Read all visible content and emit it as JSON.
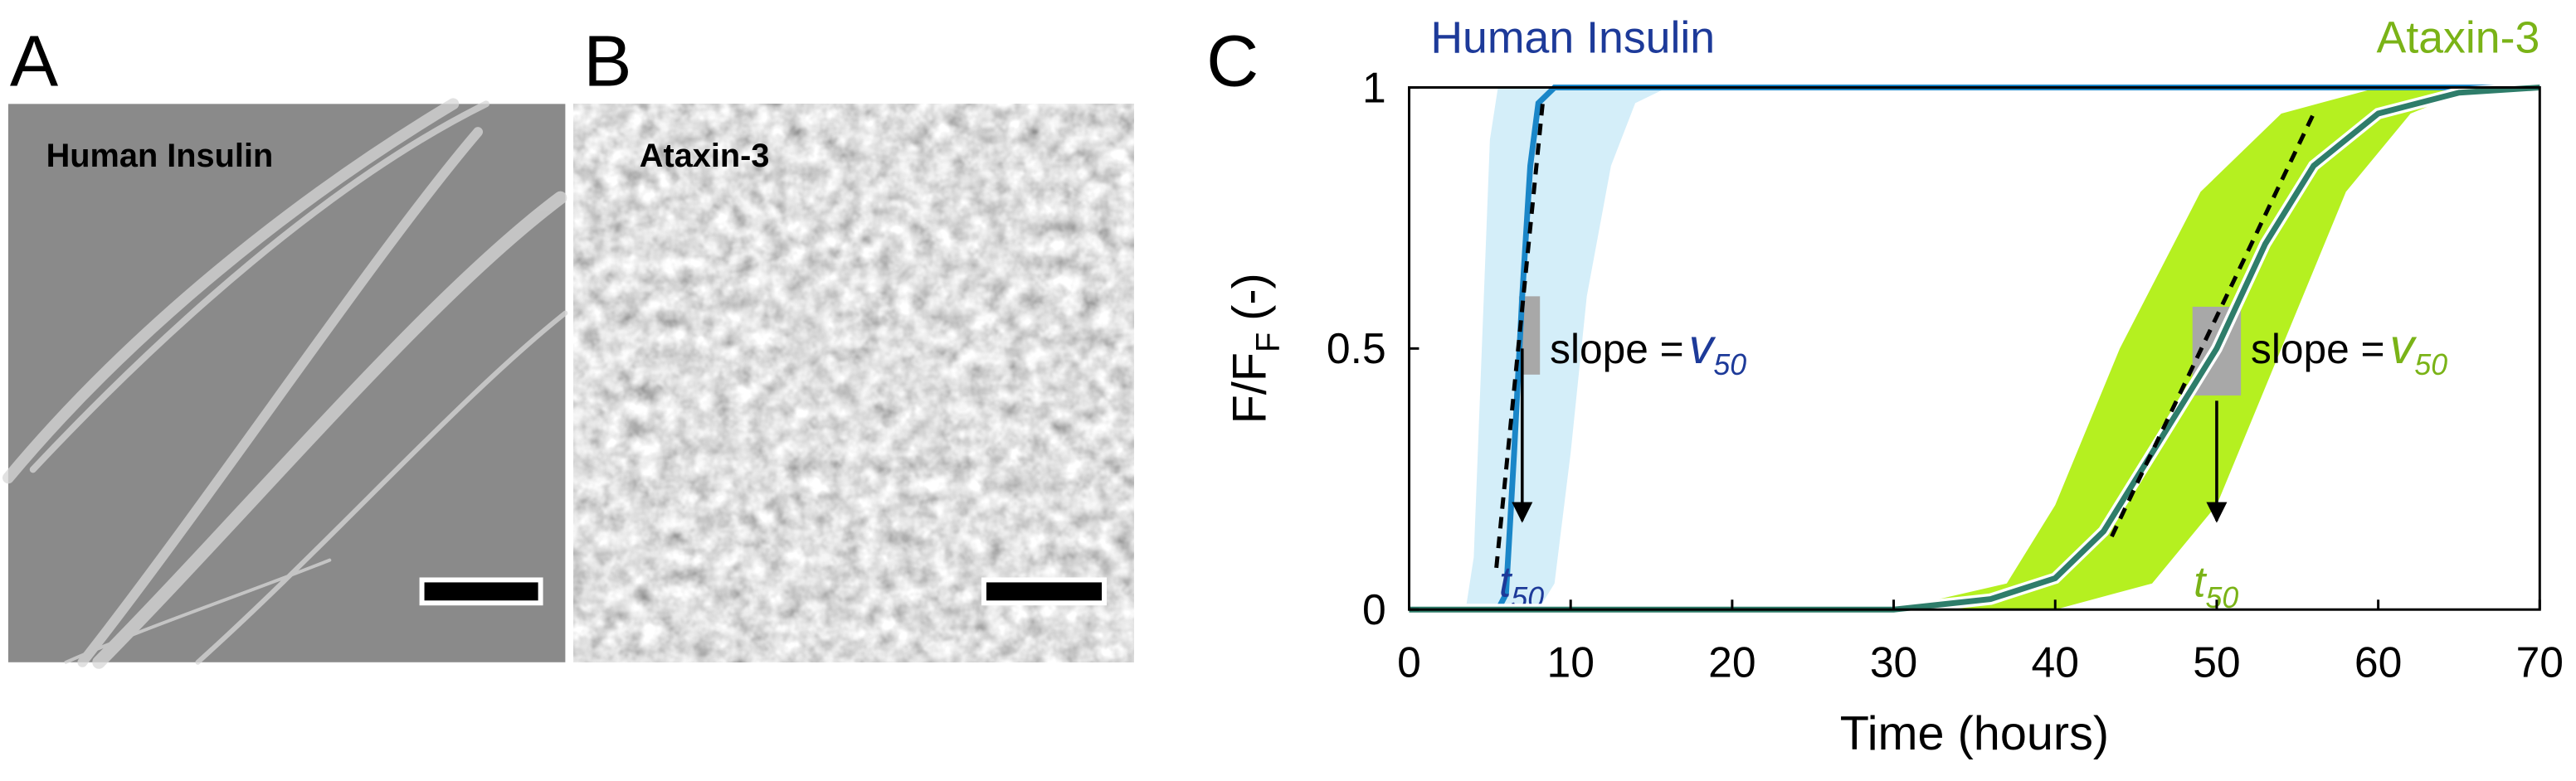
{
  "panels": {
    "a": {
      "letter": "A",
      "label": "Human Insulin"
    },
    "b": {
      "letter": "B",
      "label": "Ataxin-3"
    }
  },
  "chart_data": {
    "type": "line",
    "letter": "C",
    "xlabel": "Time (hours)",
    "ylabel": {
      "main": "F/F",
      "sub": "F",
      "tail": "(-)"
    },
    "xlim": [
      0,
      70
    ],
    "ylim": [
      0,
      1
    ],
    "xticks": [
      0,
      10,
      20,
      30,
      40,
      50,
      60,
      70
    ],
    "yticks": [
      0,
      0.5,
      1
    ],
    "slope_label": "slope =",
    "rate_symbol": "v",
    "time_symbol": "t",
    "subscript": "50",
    "series": [
      {
        "name": "Human Insulin",
        "color": "#1a86c8",
        "label_color": "#1d3a99",
        "band_color": "#d4eef9",
        "x": [
          0,
          5.5,
          6,
          6.5,
          7,
          7.5,
          8,
          9,
          70
        ],
        "values": [
          0,
          0,
          0.03,
          0.3,
          0.6,
          0.85,
          0.97,
          1,
          1
        ],
        "band_left": {
          "x": [
            3.5,
            4,
            4.5,
            5,
            5.5,
            70
          ],
          "values": [
            0,
            0.1,
            0.5,
            0.9,
            1,
            1
          ]
        },
        "band_right": {
          "x": [
            8,
            9,
            10,
            11,
            12.5,
            14,
            16,
            70
          ],
          "values": [
            0,
            0.05,
            0.3,
            0.6,
            0.85,
            0.97,
            1,
            1
          ]
        },
        "tangent": {
          "x": [
            5.4,
            8.3
          ],
          "values": [
            0.08,
            0.98
          ]
        },
        "slope_box": {
          "x": [
            6.8,
            8.1
          ],
          "values": [
            0.45,
            0.6
          ]
        },
        "t50": 7,
        "arrow": {
          "values": [
            0.5,
            0.17
          ]
        }
      },
      {
        "name": "Ataxin-3",
        "color": "#2e7d6a",
        "label_color": "#7ab317",
        "band_color": "#b5f020",
        "x": [
          0,
          30,
          36,
          40,
          43,
          46,
          50,
          53,
          56,
          60,
          65,
          70
        ],
        "values": [
          0,
          0,
          0.02,
          0.06,
          0.15,
          0.3,
          0.5,
          0.7,
          0.85,
          0.95,
          0.99,
          1
        ],
        "band_left": {
          "x": [
            30,
            37,
            40,
            44,
            49,
            54,
            60,
            70
          ],
          "values": [
            0,
            0.05,
            0.2,
            0.5,
            0.8,
            0.95,
            1,
            1
          ]
        },
        "band_right": {
          "x": [
            40,
            46,
            50,
            54,
            58,
            62,
            66,
            70
          ],
          "values": [
            0,
            0.05,
            0.2,
            0.5,
            0.8,
            0.95,
            1,
            1
          ]
        },
        "tangent": {
          "x": [
            43.5,
            56
          ],
          "values": [
            0.14,
            0.95
          ]
        },
        "slope_box": {
          "x": [
            48.5,
            51.5
          ],
          "values": [
            0.41,
            0.58
          ]
        },
        "t50": 50,
        "arrow": {
          "values": [
            0.4,
            0.17
          ]
        }
      }
    ]
  }
}
